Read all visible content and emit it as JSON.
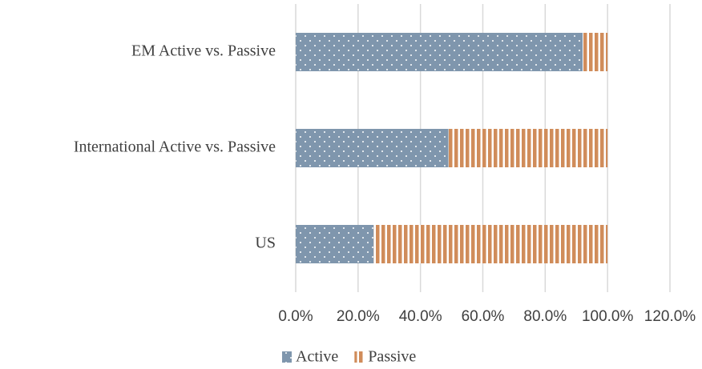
{
  "chart_data": {
    "type": "stacked-bar-horizontal",
    "categories": [
      "EM Active vs. Passive",
      "International Active vs. Passive",
      "US"
    ],
    "series": [
      {
        "name": "Active",
        "color": "#7f96ad",
        "values": [
          92,
          49,
          25
        ]
      },
      {
        "name": "Passive",
        "color": "#d08c5a",
        "values": [
          8,
          51,
          75
        ]
      }
    ],
    "xlim": [
      0,
      120
    ],
    "xticks": [
      {
        "value": 0,
        "label": "0.0%"
      },
      {
        "value": 20,
        "label": "20.0%"
      },
      {
        "value": 40,
        "label": "40.0%"
      },
      {
        "value": 60,
        "label": "60.0%"
      },
      {
        "value": 80,
        "label": "80.0%"
      },
      {
        "value": 100,
        "label": "100.0%"
      },
      {
        "value": 120,
        "label": "120.0%"
      }
    ],
    "grid": true,
    "legend": "bottom"
  }
}
